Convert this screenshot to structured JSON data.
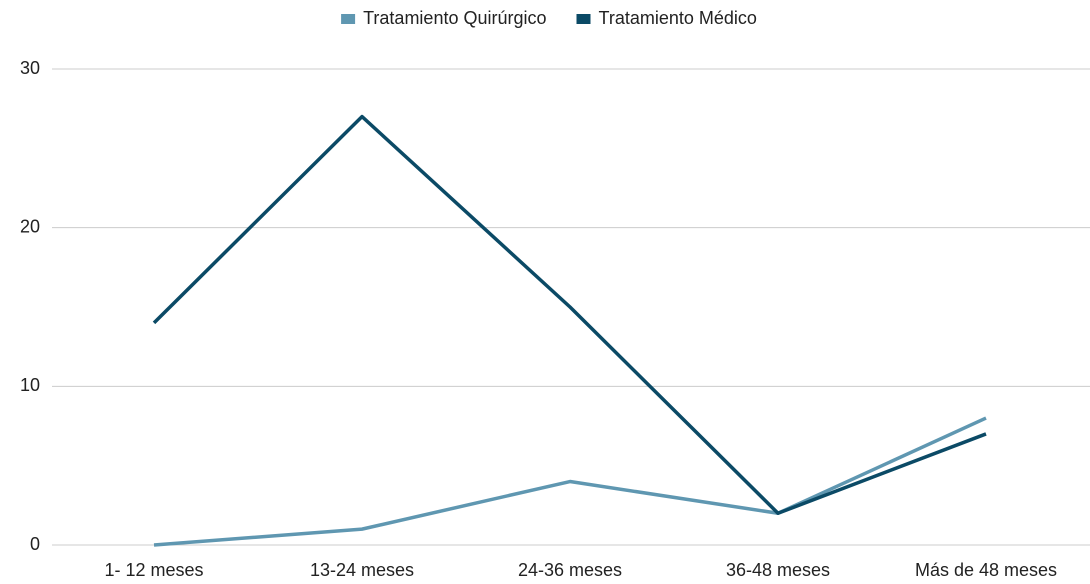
{
  "chart_data": {
    "type": "line",
    "categories": [
      "1- 12 meses",
      "13-24 meses",
      "24-36 meses",
      "36-48 meses",
      "Más de 48 meses"
    ],
    "series": [
      {
        "name": "Tratamiento Quirúrgico",
        "color": "#5f97b1",
        "values": [
          0,
          1,
          4,
          2,
          8
        ]
      },
      {
        "name": "Tratamiento Médico",
        "color": "#0b4a66",
        "values": [
          14,
          27,
          15,
          2,
          7
        ]
      }
    ],
    "ylim": [
      0,
      30
    ],
    "yticks": [
      0,
      10,
      20,
      30
    ],
    "grid": true,
    "legend": "top"
  }
}
